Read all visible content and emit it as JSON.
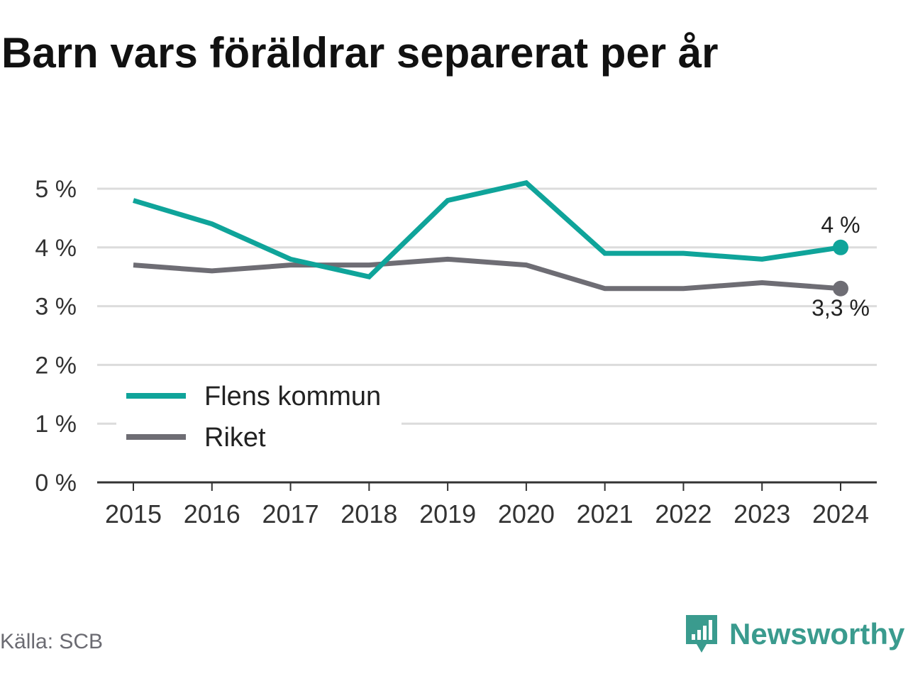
{
  "title": "Barn vars föräldrar separerat per år",
  "source": "Källa: SCB",
  "brand": {
    "name": "Newsworthy",
    "icon": "newsworthy-logo-icon",
    "color": "#3a9b8e"
  },
  "chart_data": {
    "type": "line",
    "x": [
      "2015",
      "2016",
      "2017",
      "2018",
      "2019",
      "2020",
      "2021",
      "2022",
      "2023",
      "2024"
    ],
    "y_ticks": [
      "0 %",
      "1 %",
      "2 %",
      "3 %",
      "4 %",
      "5 %"
    ],
    "ylim": [
      0,
      5
    ],
    "grid": true,
    "legend_position": "bottom-left",
    "series": [
      {
        "name": "Flens kommun",
        "color": "#0fa49a",
        "values": [
          4.8,
          4.4,
          3.8,
          3.5,
          4.8,
          5.1,
          3.9,
          3.9,
          3.8,
          4.0
        ],
        "end_label": "4 %"
      },
      {
        "name": "Riket",
        "color": "#6e6d74",
        "values": [
          3.7,
          3.6,
          3.7,
          3.7,
          3.8,
          3.7,
          3.3,
          3.3,
          3.4,
          3.3
        ],
        "end_label": "3,3 %"
      }
    ]
  }
}
